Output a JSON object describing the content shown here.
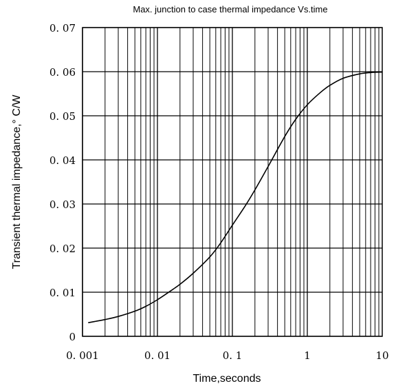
{
  "chart_data": {
    "type": "line",
    "title": "Max. junction to case thermal impedance Vs.time",
    "xlabel": "Time,seconds",
    "ylabel": "Transient thermal impedance,° C/W",
    "x_scale": "log",
    "xlim": [
      0.001,
      10
    ],
    "ylim": [
      0,
      0.07
    ],
    "grid": true,
    "legend": "none",
    "line_color": "#000000",
    "x_ticks": [
      0.001,
      0.01,
      0.1,
      1,
      10
    ],
    "x_tick_labels": [
      "0. 001",
      "0. 01",
      "0. 1",
      "1",
      "10"
    ],
    "y_ticks": [
      0,
      0.01,
      0.02,
      0.03,
      0.04,
      0.05,
      0.06,
      0.07
    ],
    "y_tick_labels": [
      "0",
      "0. 01",
      "0. 02",
      "0. 03",
      "0. 04",
      "0. 05",
      "0. 06",
      "0. 07"
    ],
    "series": [
      {
        "x": [
          0.0012,
          0.0015,
          0.002,
          0.003,
          0.005,
          0.007,
          0.01,
          0.015,
          0.02,
          0.03,
          0.05,
          0.07,
          0.1,
          0.15,
          0.2,
          0.3,
          0.5,
          0.7,
          1,
          1.5,
          2,
          3,
          5,
          7,
          10
        ],
        "y": [
          0.0031,
          0.0034,
          0.0038,
          0.0045,
          0.0057,
          0.0068,
          0.0083,
          0.0103,
          0.0118,
          0.0143,
          0.018,
          0.0212,
          0.0252,
          0.0297,
          0.0332,
          0.0385,
          0.0453,
          0.0492,
          0.0525,
          0.0553,
          0.0569,
          0.0585,
          0.0595,
          0.0598,
          0.0599
        ]
      }
    ]
  }
}
